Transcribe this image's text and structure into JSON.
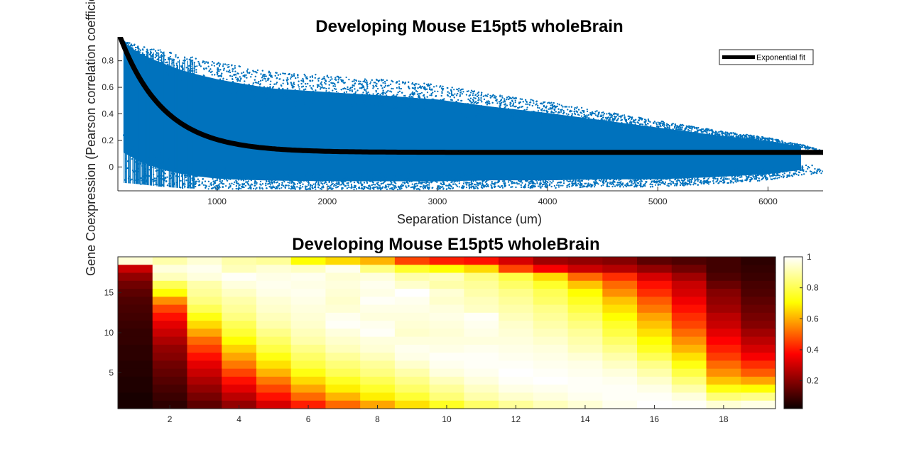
{
  "chart_data": [
    {
      "type": "scatter",
      "title": "Developing Mouse E15pt5 wholeBrain",
      "xlabel": "Separation Distance (um)",
      "ylabel": "Gene Coexpression (Pearson correlation coefficient)",
      "xlim": [
        100,
        6500
      ],
      "ylim": [
        -0.18,
        0.98
      ],
      "xticks": [
        1000,
        2000,
        3000,
        4000,
        5000,
        6000
      ],
      "xtick_labels": [
        "1000",
        "2000",
        "3000",
        "4000",
        "5000",
        "6000"
      ],
      "yticks": [
        0,
        0.2,
        0.4,
        0.6,
        0.8
      ],
      "ytick_labels": [
        "0",
        "0.2",
        "0.4",
        "0.6",
        "0.8"
      ],
      "grid": false,
      "scatter_color": "#0072BD",
      "fit_color": "#000000",
      "legend": {
        "location": "top-right",
        "entries": [
          "Exponential fit"
        ]
      },
      "fit": {
        "name": "Exponential fit",
        "model": "y = A*exp(-x/n) + B",
        "A": 0.916,
        "n": 400,
        "B": 0.11,
        "x": [
          100,
          6500
        ]
      },
      "envelope": {
        "x": [
          150,
          300,
          500,
          700,
          1000,
          1500,
          2000,
          2500,
          3000,
          3500,
          4000,
          4500,
          5000,
          5500,
          6000,
          6300,
          6500
        ],
        "upper": [
          0.95,
          0.91,
          0.88,
          0.84,
          0.79,
          0.72,
          0.69,
          0.66,
          0.62,
          0.55,
          0.49,
          0.42,
          0.35,
          0.28,
          0.22,
          0.17,
          0.12
        ],
        "lower": [
          -0.12,
          -0.13,
          -0.15,
          -0.16,
          -0.17,
          -0.17,
          -0.17,
          -0.17,
          -0.17,
          -0.16,
          -0.16,
          -0.15,
          -0.15,
          -0.13,
          -0.1,
          -0.06,
          -0.05
        ]
      }
    },
    {
      "type": "heatmap",
      "title": "Developing Mouse E15pt5 wholeBrain",
      "colormap": "hot",
      "xticks": [
        2,
        4,
        6,
        8,
        10,
        12,
        14,
        16,
        18
      ],
      "xtick_labels": [
        "2",
        "4",
        "6",
        "8",
        "10",
        "12",
        "14",
        "16",
        "18"
      ],
      "yticks": [
        5,
        10,
        15
      ],
      "ytick_labels": [
        "5",
        "10",
        "15"
      ],
      "colorbar": {
        "ticks": [
          0.2,
          0.4,
          0.6,
          0.8,
          1
        ],
        "tick_labels": [
          "0.2",
          "0.4",
          "0.6",
          "0.8",
          "1"
        ],
        "range": [
          0.02,
          1.0
        ]
      },
      "columns": 19,
      "rows": 19,
      "row_order": "top-to-bottom (row 19 first, row 1 last)",
      "values": [
        [
          0.95,
          0.9,
          0.95,
          0.9,
          0.88,
          0.7,
          0.65,
          0.6,
          0.45,
          0.4,
          0.38,
          0.3,
          0.22,
          0.2,
          0.18,
          0.12,
          0.1,
          0.08,
          0.05
        ],
        [
          0.28,
          0.96,
          0.98,
          0.92,
          0.95,
          0.93,
          0.98,
          0.85,
          0.75,
          0.7,
          0.65,
          0.45,
          0.35,
          0.28,
          0.25,
          0.2,
          0.15,
          0.08,
          0.06
        ],
        [
          0.2,
          0.92,
          0.96,
          0.99,
          0.97,
          0.98,
          0.95,
          0.96,
          0.9,
          0.92,
          0.85,
          0.78,
          0.65,
          0.5,
          0.42,
          0.3,
          0.22,
          0.1,
          0.07
        ],
        [
          0.15,
          0.8,
          0.9,
          0.96,
          0.98,
          0.97,
          0.96,
          0.98,
          0.94,
          0.9,
          0.88,
          0.82,
          0.75,
          0.62,
          0.5,
          0.38,
          0.28,
          0.14,
          0.09
        ],
        [
          0.12,
          0.7,
          0.88,
          0.93,
          0.97,
          0.98,
          0.95,
          0.97,
          1.0,
          0.95,
          0.9,
          0.86,
          0.8,
          0.7,
          0.55,
          0.42,
          0.3,
          0.18,
          0.1
        ],
        [
          0.1,
          0.55,
          0.85,
          0.9,
          0.95,
          0.97,
          0.94,
          0.99,
          0.98,
          0.94,
          0.92,
          0.88,
          0.82,
          0.74,
          0.62,
          0.48,
          0.34,
          0.2,
          0.12
        ],
        [
          0.09,
          0.45,
          0.8,
          0.88,
          0.94,
          0.96,
          0.95,
          0.97,
          0.97,
          0.96,
          0.93,
          0.9,
          0.86,
          0.78,
          0.66,
          0.52,
          0.38,
          0.22,
          0.14
        ],
        [
          0.08,
          0.38,
          0.72,
          0.85,
          0.92,
          0.95,
          0.98,
          0.96,
          0.96,
          0.97,
          0.99,
          0.92,
          0.88,
          0.82,
          0.7,
          0.58,
          0.42,
          0.26,
          0.16
        ],
        [
          0.07,
          0.32,
          0.65,
          0.8,
          0.9,
          0.94,
          0.99,
          0.98,
          0.95,
          0.96,
          0.98,
          0.94,
          0.9,
          0.85,
          0.75,
          0.62,
          0.45,
          0.28,
          0.18
        ],
        [
          0.06,
          0.28,
          0.58,
          0.76,
          0.86,
          0.92,
          0.96,
          0.99,
          0.94,
          0.95,
          0.97,
          0.95,
          0.92,
          0.88,
          0.78,
          0.66,
          0.5,
          0.32,
          0.22
        ],
        [
          0.06,
          0.24,
          0.5,
          0.7,
          0.82,
          0.9,
          0.94,
          0.96,
          0.96,
          0.96,
          0.96,
          0.96,
          0.94,
          0.9,
          0.82,
          0.7,
          0.55,
          0.36,
          0.26
        ],
        [
          0.05,
          0.2,
          0.44,
          0.64,
          0.78,
          0.86,
          0.92,
          0.95,
          0.98,
          0.97,
          0.98,
          0.97,
          0.96,
          0.92,
          0.86,
          0.74,
          0.6,
          0.4,
          0.3
        ],
        [
          0.05,
          0.18,
          0.38,
          0.58,
          0.72,
          0.82,
          0.88,
          0.92,
          0.97,
          0.99,
          0.99,
          0.98,
          0.97,
          0.95,
          0.9,
          0.8,
          0.66,
          0.44,
          0.35
        ],
        [
          0.04,
          0.15,
          0.32,
          0.52,
          0.66,
          0.78,
          0.84,
          0.88,
          0.94,
          0.98,
          0.99,
          0.99,
          0.98,
          0.97,
          0.93,
          0.86,
          0.72,
          0.5,
          0.42
        ],
        [
          0.04,
          0.13,
          0.28,
          0.45,
          0.6,
          0.72,
          0.8,
          0.85,
          0.9,
          0.96,
          0.98,
          1.0,
          0.99,
          0.98,
          0.96,
          0.9,
          0.78,
          0.55,
          0.48
        ],
        [
          0.03,
          0.11,
          0.24,
          0.38,
          0.52,
          0.65,
          0.74,
          0.8,
          0.86,
          0.92,
          0.96,
          0.99,
          1.0,
          0.99,
          0.98,
          0.94,
          0.84,
          0.62,
          0.58
        ],
        [
          0.03,
          0.09,
          0.2,
          0.32,
          0.45,
          0.58,
          0.68,
          0.75,
          0.82,
          0.88,
          0.93,
          0.97,
          0.98,
          0.99,
          0.99,
          0.97,
          0.9,
          0.72,
          0.7
        ],
        [
          0.02,
          0.07,
          0.16,
          0.26,
          0.38,
          0.5,
          0.6,
          0.68,
          0.76,
          0.84,
          0.9,
          0.94,
          0.96,
          0.98,
          0.99,
          0.99,
          0.96,
          0.84,
          0.86
        ],
        [
          0.02,
          0.05,
          0.12,
          0.2,
          0.3,
          0.4,
          0.5,
          0.58,
          0.66,
          0.74,
          0.82,
          0.88,
          0.92,
          0.95,
          0.98,
          1.0,
          0.99,
          0.95,
          0.97
        ]
      ]
    }
  ]
}
